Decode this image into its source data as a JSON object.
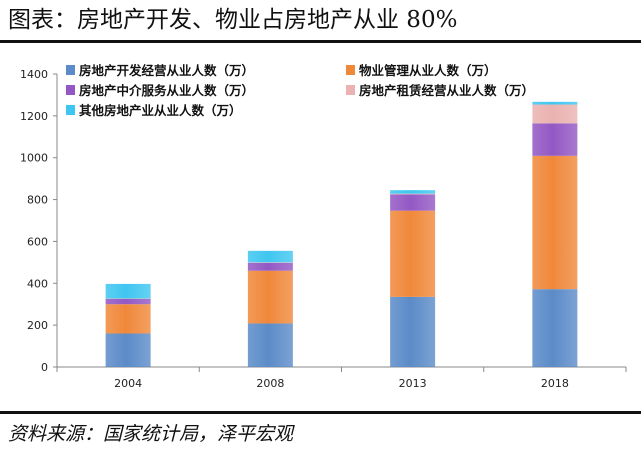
{
  "header": {
    "title": "图表：房地产开发、物业占房地产从业 80%"
  },
  "footer": {
    "source": "资料来源：国家统计局，泽平宏观"
  },
  "chart_data": {
    "type": "bar",
    "stacked": true,
    "categories": [
      "2004",
      "2008",
      "2013",
      "2018"
    ],
    "series": [
      {
        "name": "房地产开发经营从业人数（万）",
        "color": "#5b8bc8",
        "values": [
          160,
          208,
          335,
          372
        ]
      },
      {
        "name": "物业管理从业人数（万）",
        "color": "#f0883a",
        "values": [
          140,
          252,
          412,
          637
        ]
      },
      {
        "name": "房地产中介服务从业人数（万）",
        "color": "#9358c4",
        "values": [
          25,
          38,
          78,
          155
        ]
      },
      {
        "name": "房地产租赁经营从业人数（万）",
        "color": "#eab2b0",
        "values": [
          2,
          2,
          3,
          90
        ]
      },
      {
        "name": "其他房地产业从业人数（万）",
        "color": "#3fc6f0",
        "values": [
          70,
          55,
          17,
          13
        ]
      }
    ],
    "ylim": [
      0,
      1400
    ],
    "yticks": [
      0,
      200,
      400,
      600,
      800,
      1000,
      1200,
      1400
    ],
    "legend_position": "top",
    "grid": false
  }
}
